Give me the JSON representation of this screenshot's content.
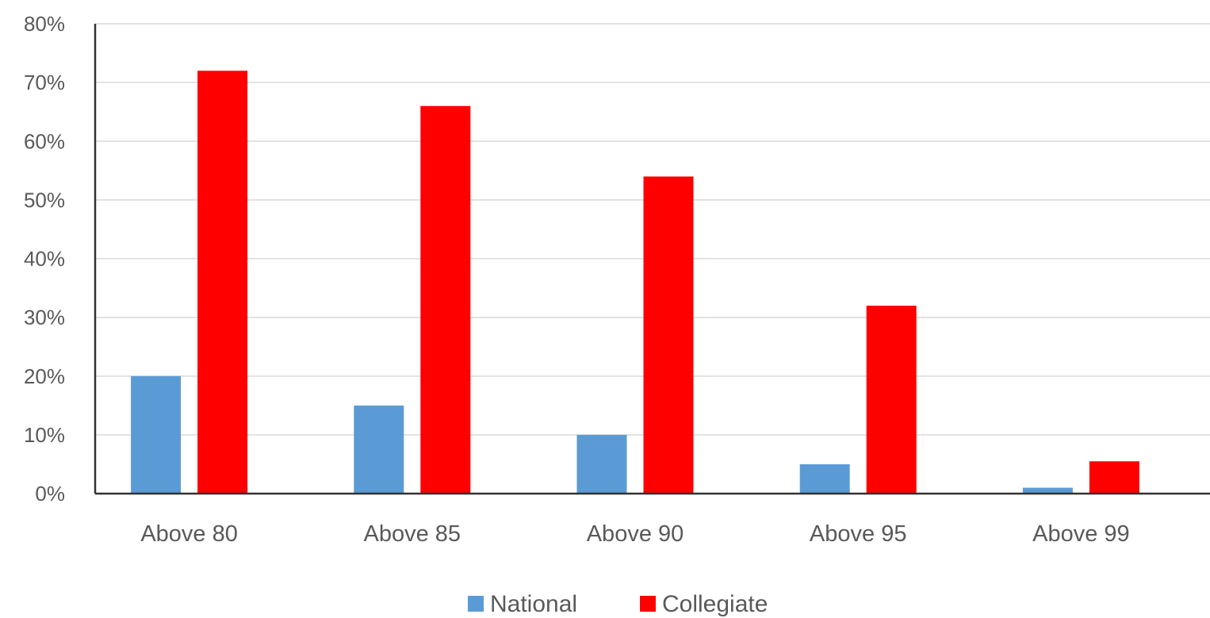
{
  "chart_data": {
    "type": "bar",
    "categories": [
      "Above 80",
      "Above 85",
      "Above 90",
      "Above 95",
      "Above 99"
    ],
    "series": [
      {
        "name": "National",
        "color": "#5b9bd5",
        "values": [
          20,
          15,
          10,
          5,
          1
        ]
      },
      {
        "name": "Collegiate",
        "color": "#ff0000",
        "values": [
          72,
          66,
          54,
          32,
          5.5
        ]
      }
    ],
    "ylim": [
      0,
      80
    ],
    "yticks": [
      "0%",
      "10%",
      "20%",
      "30%",
      "40%",
      "50%",
      "60%",
      "70%",
      "80%"
    ],
    "title": "",
    "xlabel": "",
    "ylabel": "",
    "grid": true,
    "legend_position": "bottom"
  }
}
